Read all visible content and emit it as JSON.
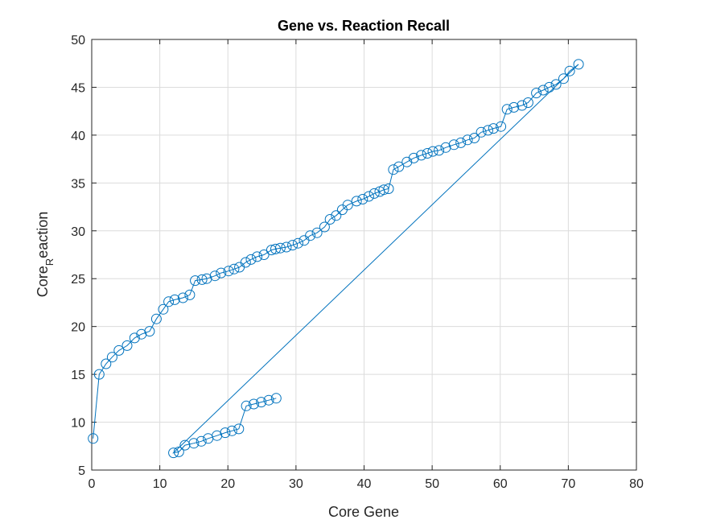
{
  "chart_data": {
    "type": "line",
    "title": "Gene vs. Reaction Recall",
    "xlabel": "Core Gene",
    "ylabel_main": "Core",
    "ylabel_sub": "R",
    "ylabel_rest": "eaction",
    "xlim": [
      0,
      80
    ],
    "ylim": [
      5,
      50
    ],
    "xticks": [
      0,
      10,
      20,
      30,
      40,
      50,
      60,
      70,
      80
    ],
    "yticks": [
      5,
      10,
      15,
      20,
      25,
      30,
      35,
      40,
      45,
      50
    ],
    "grid": true,
    "line_color": "#0072BD",
    "marker": "circle",
    "series": [
      {
        "x": [
          0.2,
          1.1,
          2.1,
          3.0,
          4.0,
          5.2,
          6.3,
          7.3,
          8.5,
          9.5,
          10.5,
          11.3,
          12.2,
          13.4,
          14.4,
          15.2,
          16.2,
          16.9,
          18.1,
          19.0,
          20.1,
          20.9,
          21.7,
          22.6,
          23.4,
          24.3,
          25.3,
          26.4,
          27.0,
          27.7,
          28.6,
          29.5,
          30.3,
          31.2,
          32.1,
          33.1,
          34.2,
          35.0,
          35.9,
          36.8,
          37.6,
          38.9,
          39.8,
          40.7,
          41.5,
          42.3,
          42.9,
          43.6,
          44.3,
          45.1,
          46.3,
          47.3,
          48.4,
          49.3,
          50.1,
          51.0,
          52.0,
          53.2,
          54.2,
          55.2,
          56.2,
          57.2,
          58.2,
          59.0,
          60.1,
          61.0,
          62.0,
          63.2,
          64.1,
          65.3,
          66.3,
          67.2,
          68.2,
          69.3,
          70.2,
          71.5,
          12.0,
          12.8,
          13.7,
          15.0,
          16.1,
          17.1,
          18.4,
          19.6,
          20.6,
          21.6,
          22.7,
          23.8,
          24.9,
          26.0,
          27.1
        ],
        "y": [
          8.3,
          15.0,
          16.1,
          16.8,
          17.5,
          18.0,
          18.8,
          19.2,
          19.5,
          20.8,
          21.8,
          22.6,
          22.8,
          23.0,
          23.3,
          24.8,
          24.9,
          25.0,
          25.3,
          25.6,
          25.8,
          26.0,
          26.2,
          26.7,
          27.0,
          27.3,
          27.5,
          28.0,
          28.1,
          28.2,
          28.3,
          28.5,
          28.7,
          29.0,
          29.5,
          29.8,
          30.4,
          31.2,
          31.6,
          32.2,
          32.7,
          33.1,
          33.3,
          33.6,
          33.9,
          34.1,
          34.3,
          34.4,
          36.4,
          36.7,
          37.2,
          37.6,
          37.9,
          38.1,
          38.3,
          38.4,
          38.7,
          39.0,
          39.2,
          39.5,
          39.7,
          40.3,
          40.5,
          40.7,
          40.9,
          42.7,
          42.9,
          43.1,
          43.4,
          44.4,
          44.7,
          45.0,
          45.3,
          45.9,
          46.7,
          47.4,
          6.8,
          6.9,
          7.6,
          7.8,
          8.0,
          8.3,
          8.6,
          8.9,
          9.1,
          9.3,
          11.7,
          11.9,
          12.1,
          12.3,
          12.5
        ]
      }
    ]
  }
}
